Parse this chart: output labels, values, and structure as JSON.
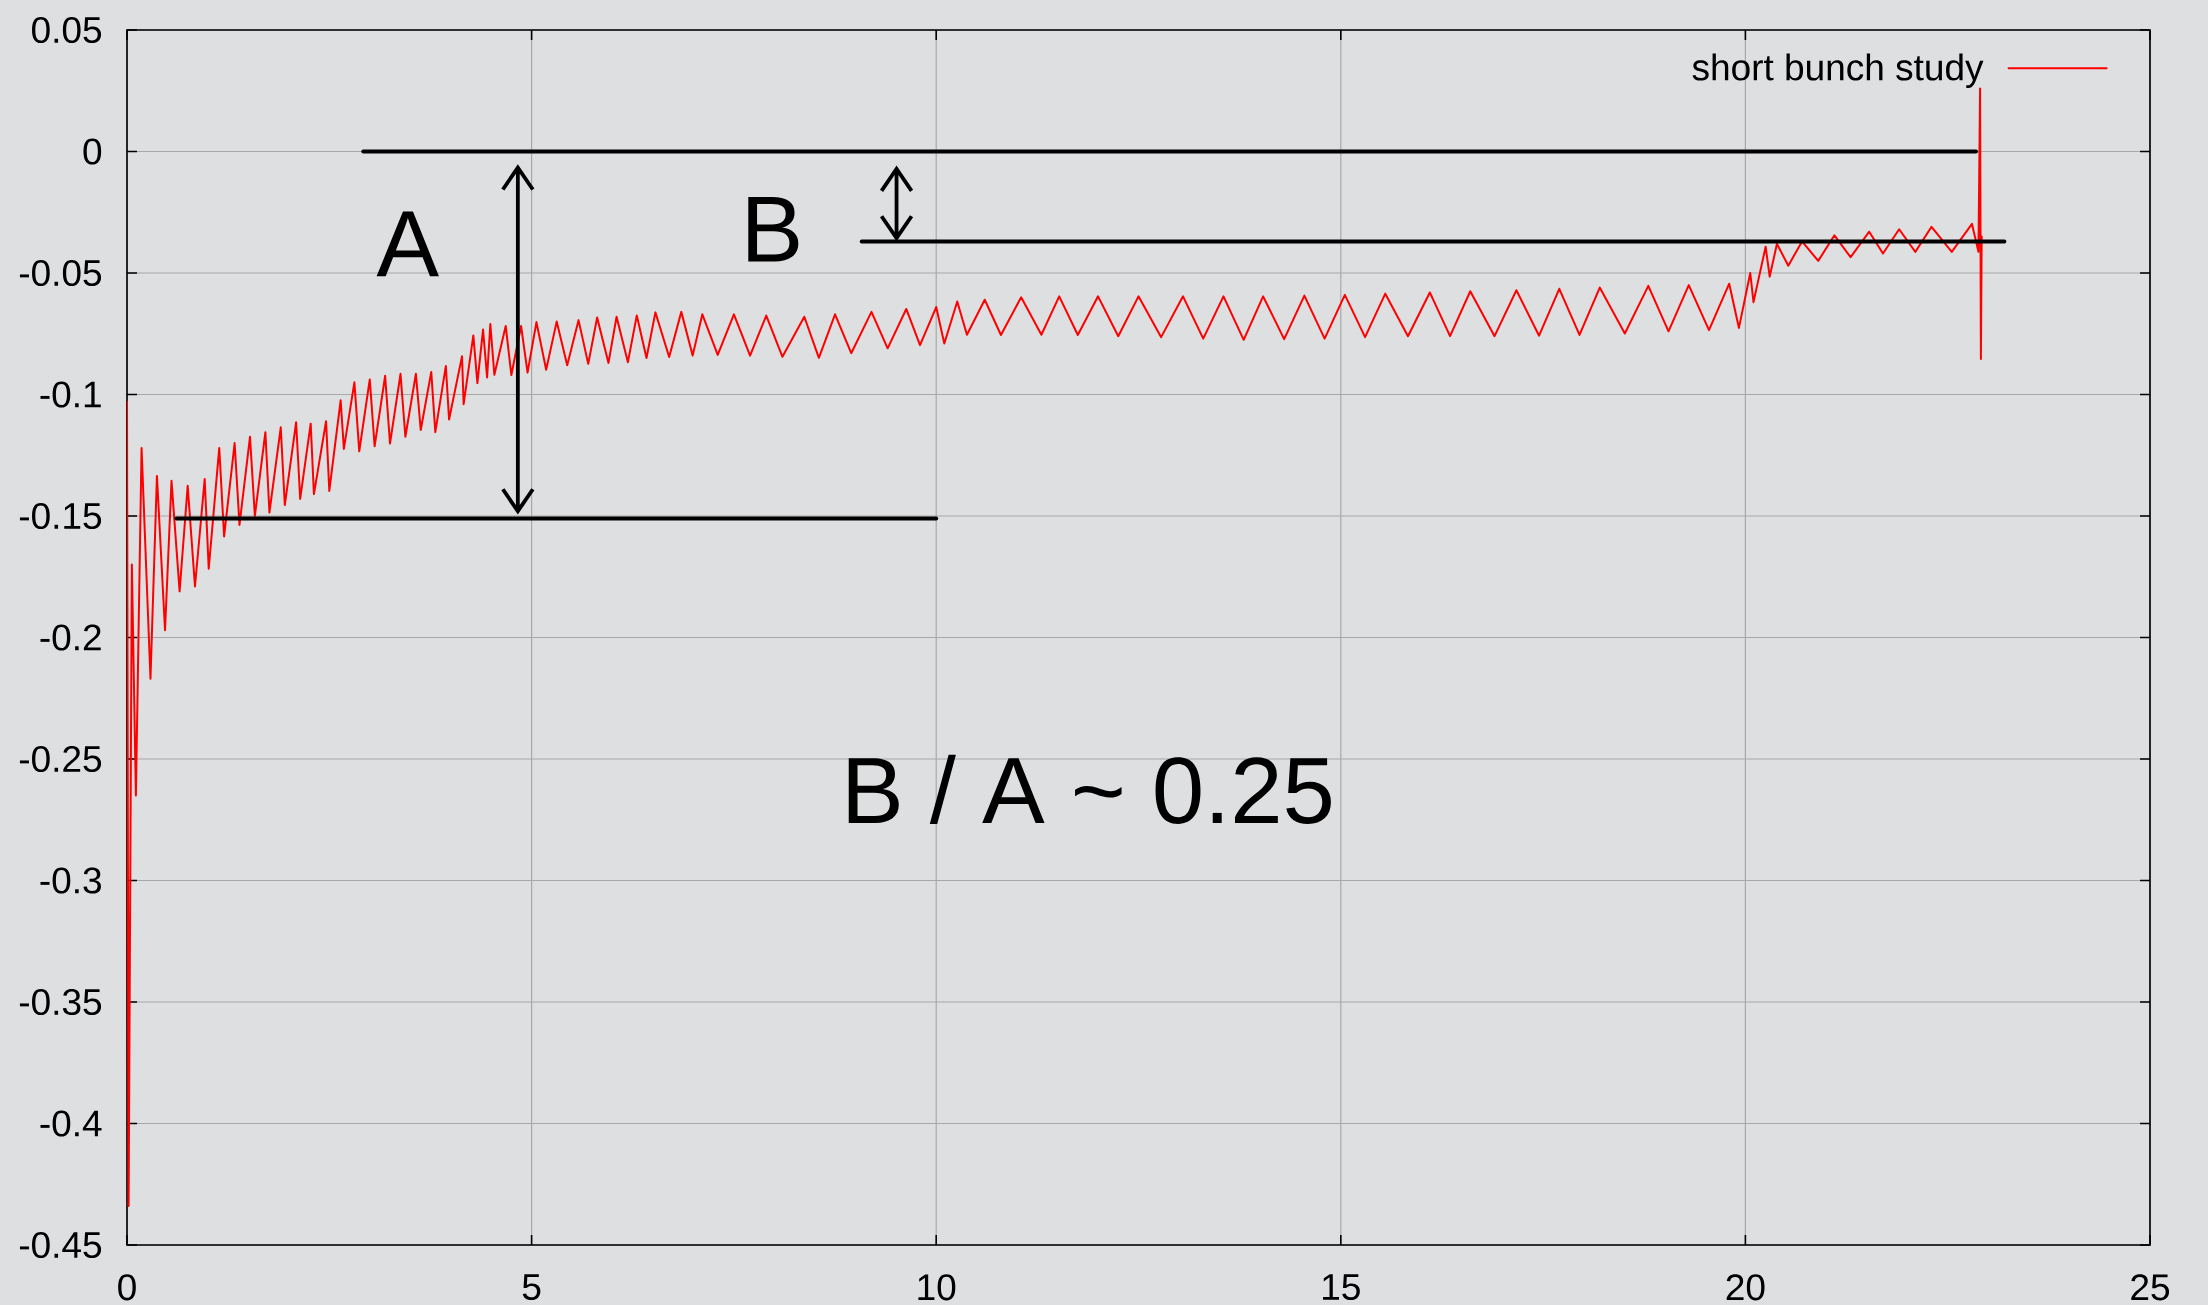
{
  "chart_data": {
    "type": "line",
    "xlim": [
      0,
      25
    ],
    "ylim": [
      -0.45,
      0.05
    ],
    "xticks": [
      0,
      5,
      10,
      15,
      20,
      25
    ],
    "yticks": [
      0.05,
      0,
      -0.05,
      -0.1,
      -0.15,
      -0.2,
      -0.25,
      -0.3,
      -0.35,
      -0.4,
      -0.45
    ],
    "grid": true,
    "legend": "top right",
    "series": [
      {
        "name": "short bunch study",
        "color": "#ff0000",
        "x": [
          0,
          0.02,
          0.06,
          0.11,
          0.18,
          0.29,
          0.37,
          0.47,
          0.55,
          0.65,
          0.75,
          0.84,
          0.96,
          1.01,
          1.14,
          1.2,
          1.33,
          1.39,
          1.52,
          1.58,
          1.71,
          1.76,
          1.9,
          1.95,
          2.09,
          2.14,
          2.27,
          2.31,
          2.46,
          2.5,
          2.64,
          2.68,
          2.81,
          2.87,
          3,
          3.06,
          3.19,
          3.25,
          3.38,
          3.44,
          3.57,
          3.63,
          3.76,
          3.81,
          3.94,
          3.98,
          4.14,
          4.16,
          4.28,
          4.33,
          4.4,
          4.45,
          4.49,
          4.54,
          4.68,
          4.75,
          4.87,
          4.95,
          5.06,
          5.18,
          5.31,
          5.44,
          5.58,
          5.7,
          5.81,
          5.95,
          6.05,
          6.19,
          6.3,
          6.42,
          6.53,
          6.7,
          6.85,
          6.99,
          7.11,
          7.3,
          7.5,
          7.7,
          7.9,
          8.1,
          8.37,
          8.55,
          8.75,
          8.95,
          9.2,
          9.4,
          9.63,
          9.8,
          10,
          10.1,
          10.26,
          10.38,
          10.6,
          10.8,
          11.05,
          11.3,
          11.52,
          11.75,
          12,
          12.25,
          12.5,
          12.78,
          13.05,
          13.3,
          13.55,
          13.8,
          14.04,
          14.3,
          14.55,
          14.8,
          15.05,
          15.3,
          15.55,
          15.83,
          16.1,
          16.35,
          16.6,
          16.9,
          17.17,
          17.45,
          17.7,
          17.95,
          18.2,
          18.51,
          18.8,
          19.05,
          19.3,
          19.55,
          19.8,
          19.92,
          20.06,
          20.1,
          20.25,
          20.3,
          20.39,
          20.53,
          20.7,
          20.9,
          21.1,
          21.3,
          21.53,
          21.7,
          21.9,
          22.1,
          22.3,
          22.55,
          22.8,
          22.88,
          22.9,
          22.91,
          22.92
        ],
        "values": [
          -0.103,
          -0.434,
          -0.17,
          -0.265,
          -0.122,
          -0.217,
          -0.1335,
          -0.197,
          -0.1355,
          -0.181,
          -0.1376,
          -0.179,
          -0.1348,
          -0.1717,
          -0.122,
          -0.1584,
          -0.12,
          -0.1537,
          -0.1174,
          -0.15,
          -0.1155,
          -0.1486,
          -0.1135,
          -0.1455,
          -0.1114,
          -0.143,
          -0.112,
          -0.141,
          -0.111,
          -0.1397,
          -0.1024,
          -0.1224,
          -0.095,
          -0.1234,
          -0.0938,
          -0.1213,
          -0.0923,
          -0.1202,
          -0.0915,
          -0.1174,
          -0.0915,
          -0.1146,
          -0.0907,
          -0.1155,
          -0.0883,
          -0.1103,
          -0.0843,
          -0.104,
          -0.0757,
          -0.0953,
          -0.0733,
          -0.093,
          -0.071,
          -0.0919,
          -0.0718,
          -0.092,
          -0.0718,
          -0.091,
          -0.0702,
          -0.0898,
          -0.07,
          -0.088,
          -0.0694,
          -0.0874,
          -0.0683,
          -0.087,
          -0.068,
          -0.0867,
          -0.0675,
          -0.085,
          -0.0662,
          -0.0846,
          -0.066,
          -0.084,
          -0.067,
          -0.0837,
          -0.067,
          -0.084,
          -0.0675,
          -0.0845,
          -0.068,
          -0.0849,
          -0.067,
          -0.083,
          -0.066,
          -0.081,
          -0.0648,
          -0.0797,
          -0.064,
          -0.079,
          -0.0617,
          -0.0754,
          -0.061,
          -0.0755,
          -0.06,
          -0.0754,
          -0.0596,
          -0.0755,
          -0.0596,
          -0.076,
          -0.0596,
          -0.0764,
          -0.0596,
          -0.077,
          -0.0596,
          -0.0775,
          -0.0596,
          -0.0772,
          -0.0593,
          -0.077,
          -0.059,
          -0.0764,
          -0.0585,
          -0.076,
          -0.058,
          -0.076,
          -0.0575,
          -0.076,
          -0.0571,
          -0.0758,
          -0.0565,
          -0.0755,
          -0.056,
          -0.0749,
          -0.0553,
          -0.074,
          -0.055,
          -0.0735,
          -0.0544,
          -0.0726,
          -0.05,
          -0.062,
          -0.0392,
          -0.0515,
          -0.038,
          -0.047,
          -0.037,
          -0.045,
          -0.0345,
          -0.0435,
          -0.033,
          -0.042,
          -0.032,
          -0.0413,
          -0.031,
          -0.0413,
          -0.0298,
          -0.0413,
          0.0259,
          -0.0854,
          -0.035
        ]
      },
      {
        "color": "#000000",
        "x": [
          2.92,
          22.85
        ],
        "values": [
          0,
          0
        ]
      },
      {
        "color": "#000000",
        "x": [
          9.08,
          23.2
        ],
        "values": [
          -0.037,
          -0.037
        ]
      },
      {
        "color": "#000000",
        "x": [
          0.61,
          10
        ],
        "values": [
          -0.151,
          -0.151
        ]
      }
    ],
    "annotations": [
      "A",
      "B",
      "B / A ~ 0.25"
    ]
  }
}
